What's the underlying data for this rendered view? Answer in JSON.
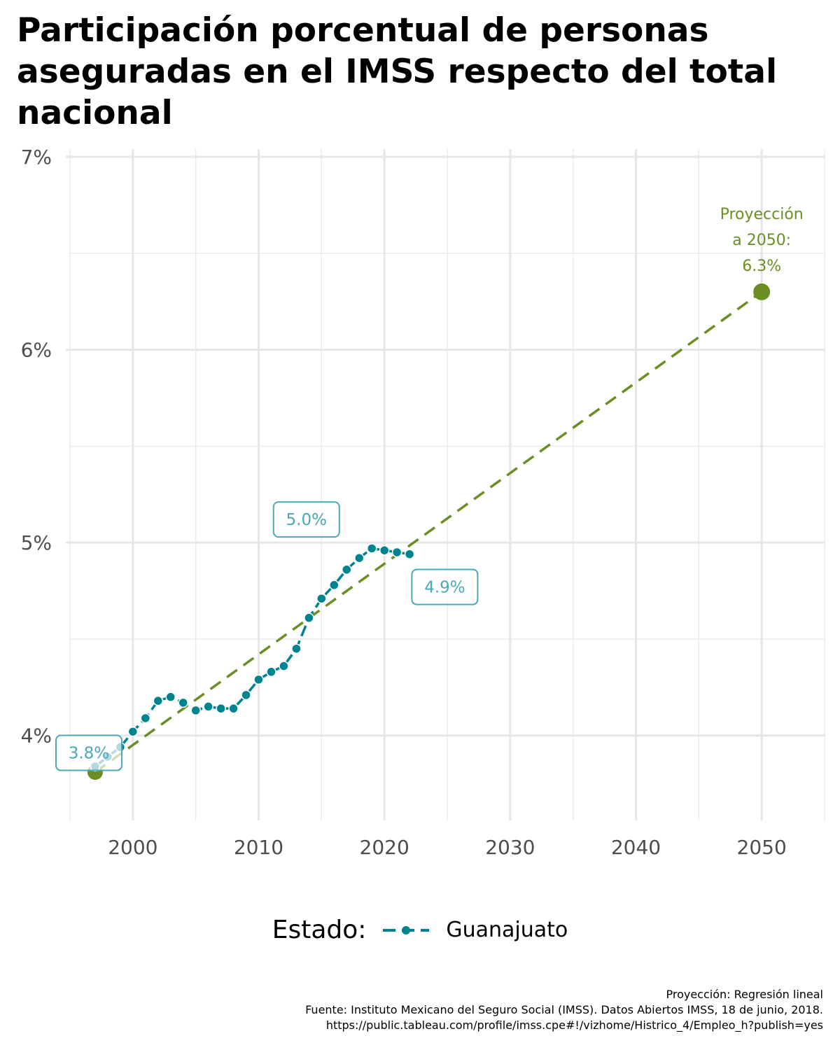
{
  "chart_data": {
    "type": "line",
    "title": "Participación porcentual de personas aseguradas en el IMSS respecto del total nacional",
    "x_ticks": [
      2000,
      2010,
      2020,
      2030,
      2040,
      2050
    ],
    "y_ticks": [
      4,
      5,
      6,
      7
    ],
    "y_tick_labels": [
      "4%",
      "5%",
      "6%",
      "7%"
    ],
    "xlim": [
      1995,
      2055
    ],
    "ylim": [
      3.56,
      7.04
    ],
    "grid": true,
    "series": [
      {
        "name": "Guanajuato",
        "color": "#00838f",
        "x": [
          1997,
          1998,
          1999,
          2000,
          2001,
          2002,
          2003,
          2004,
          2005,
          2006,
          2007,
          2008,
          2009,
          2010,
          2011,
          2012,
          2013,
          2014,
          2015,
          2016,
          2017,
          2018,
          2019,
          2020,
          2021,
          2022
        ],
        "y": [
          3.84,
          3.89,
          3.94,
          4.02,
          4.09,
          4.18,
          4.2,
          4.17,
          4.13,
          4.15,
          4.14,
          4.14,
          4.21,
          4.29,
          4.33,
          4.36,
          4.45,
          4.61,
          4.71,
          4.78,
          4.86,
          4.92,
          4.97,
          4.96,
          4.95,
          4.94
        ]
      }
    ],
    "projection": {
      "color": "#6b8e23",
      "start": {
        "x": 1997,
        "y": 3.81
      },
      "end": {
        "x": 2050,
        "y": 6.3
      },
      "label_lines": [
        "Proyección",
        "a 2050:",
        "6.3%"
      ]
    },
    "callouts": [
      {
        "text": "3.8%",
        "x": 1996.5,
        "y": 3.91
      },
      {
        "text": "5.0%",
        "x": 2013.8,
        "y": 5.12
      },
      {
        "text": "4.9%",
        "x": 2024.8,
        "y": 4.77
      }
    ]
  },
  "legend": {
    "title": "Estado:",
    "label": "Guanajuato"
  },
  "caption": {
    "lines": [
      "Proyección: Regresión lineal",
      "Fuente: Instituto Mexicano del Seguro Social (IMSS). Datos Abiertos IMSS, 18 de junio, 2018.",
      "https://public.tableau.com/profile/imss.cpe#!/vizhome/Histrico_4/Empleo_h?publish=yes"
    ]
  }
}
